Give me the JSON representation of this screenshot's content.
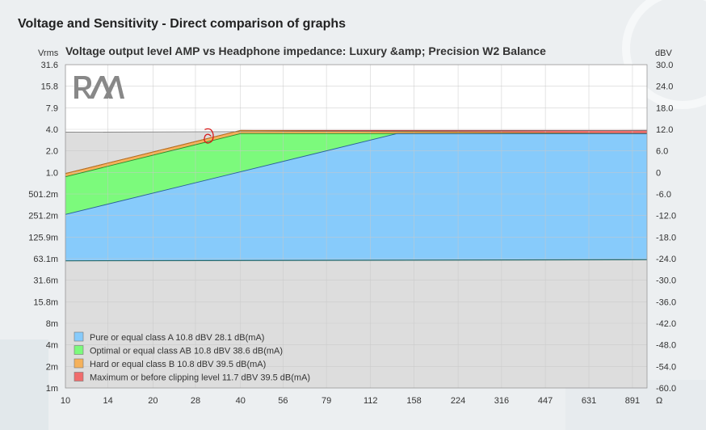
{
  "page": {
    "title": "Voltage and Sensitivity - Direct comparison of graphs"
  },
  "chart_data": {
    "type": "area",
    "title": "Voltage output level AMP vs Headphone impedance: Luxury &amp; Precision W2 Balance",
    "logo_text": "RAA",
    "x_axis": {
      "scale": "log",
      "unit": "Ω",
      "range": [
        10,
        1000
      ],
      "tick_values": [
        10,
        14,
        20,
        28,
        40,
        56,
        79,
        112,
        158,
        224,
        316,
        447,
        631,
        891
      ],
      "tick_labels": [
        "10",
        "14",
        "20",
        "28",
        "40",
        "56",
        "79",
        "112",
        "158",
        "224",
        "316",
        "447",
        "631",
        "891"
      ]
    },
    "y_left": {
      "unit": "Vrms",
      "scale": "log",
      "ticks": [
        "31.6",
        "15.8",
        "7.9",
        "4.0",
        "2.0",
        "1.0",
        "501.2m",
        "251.2m",
        "125.9m",
        "63.1m",
        "31.6m",
        "15.8m",
        "8m",
        "4m",
        "2m",
        "1m"
      ]
    },
    "y_right": {
      "unit": "dBV",
      "range": [
        -60,
        30
      ],
      "ticks": [
        "30.0",
        "24.0",
        "18.0",
        "12.0",
        "6.0",
        "0",
        "-6.0",
        "-12.0",
        "-18.0",
        "-24.0",
        "-30.0",
        "-36.0",
        "-42.0",
        "-48.0",
        "-54.0",
        "-60.0"
      ]
    },
    "grid": true,
    "legend_position": "bottom-left",
    "series": [
      {
        "name": "Maximum or before clipping level 11.7 dBV 39.5 dB(mA)",
        "color": "#f06c6c",
        "x": [
          10,
          40,
          1000
        ],
        "y_dbv": [
          -0.3,
          11.7,
          11.7
        ]
      },
      {
        "name": "Hard or equal class B 10.8 dBV 39.5 dB(mA)",
        "color": "#f5b15a",
        "x": [
          10,
          40,
          1000
        ],
        "y_dbv": [
          -0.3,
          11.7,
          10.8
        ]
      },
      {
        "name": "Optimal or equal class AB 10.8 dBV 38.6 dB(mA)",
        "color": "#7cfa7c",
        "x": [
          10,
          40,
          1000
        ],
        "y_dbv": [
          -1.2,
          10.8,
          10.8
        ]
      },
      {
        "name": "Pure or equal class A 10.8 dBV 28.1 dB(mA)",
        "color": "#87cbfb",
        "x": [
          10,
          138,
          1000
        ],
        "y_dbv": [
          -11.7,
          10.8,
          10.8
        ]
      }
    ],
    "baseline": {
      "x": [
        10,
        1000
      ],
      "y_dbv": [
        -24.6,
        -24.3
      ]
    },
    "shaded_reference": {
      "color": "#d9d9d9",
      "x": [
        10,
        1000
      ],
      "y_dbv": [
        11.2,
        11.7
      ]
    },
    "annotation": {
      "type": "hand-drawn mark",
      "color": "#d71919",
      "x": 31,
      "y_dbv": 9.5
    }
  }
}
